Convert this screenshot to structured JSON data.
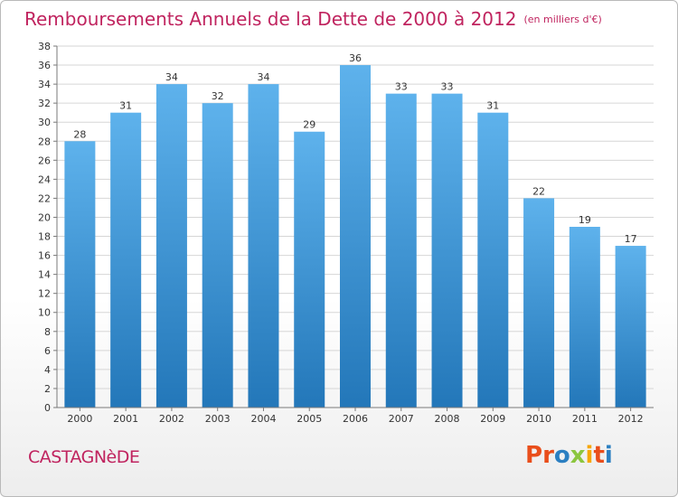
{
  "chart_data": {
    "type": "bar",
    "title": "Remboursements Annuels de la Dette de 2000 à 2012",
    "unit": "(en milliers d'€)",
    "categories": [
      "2000",
      "2001",
      "2002",
      "2003",
      "2004",
      "2005",
      "2006",
      "2007",
      "2008",
      "2009",
      "2010",
      "2011",
      "2012"
    ],
    "values": [
      28,
      31,
      34,
      32,
      34,
      29,
      36,
      33,
      33,
      31,
      22,
      19,
      17
    ],
    "ylim": [
      0,
      38
    ],
    "ytick_step": 2,
    "yticks": [
      "0",
      "2",
      "4",
      "6",
      "8",
      "10",
      "12",
      "14",
      "16",
      "18",
      "20",
      "22",
      "24",
      "26",
      "28",
      "30",
      "32",
      "34",
      "36",
      "38"
    ],
    "xlabel": "",
    "ylabel": "",
    "grid": true,
    "legend": "none"
  },
  "footer": {
    "commune": "CASTAGNèDE",
    "brand": "Proxiti"
  },
  "colors": {
    "title": "#c0245f",
    "bar_top": "#5eb2ec",
    "bar_bottom": "#2377b9",
    "grid": "#d6d6d6",
    "axis": "#7a7a7a",
    "brand_letters": [
      "#e94e1b",
      "#e94e1b",
      "#2b7fc1",
      "#8cc63f",
      "#f7a600",
      "#e94e1b",
      "#2b7fc1"
    ]
  }
}
